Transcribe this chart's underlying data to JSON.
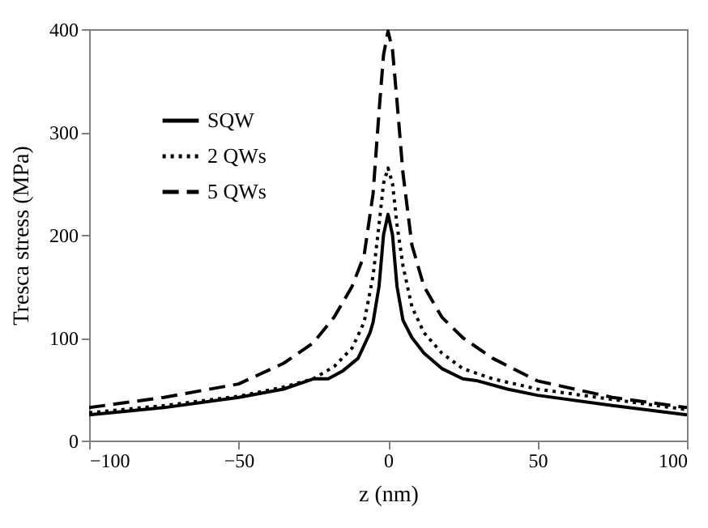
{
  "chart_data": {
    "type": "line",
    "xlabel": "z (nm)",
    "ylabel": "Tresca stress (MPa)",
    "xlim": [
      -100,
      100
    ],
    "xticks": [
      -100,
      -50,
      0,
      50,
      100
    ],
    "ylim": [
      0,
      400
    ],
    "yticks": [
      0,
      100,
      200,
      300,
      400
    ],
    "grid": false,
    "legend": "top left",
    "marker": "none",
    "series": [
      {
        "name": "SQW",
        "color": "#000000",
        "line_style": "solid",
        "x": [
          -100,
          -75,
          -50,
          -35,
          -25,
          -20,
          -15,
          -10,
          -6,
          -5,
          -3,
          -1.5,
          0,
          1.5,
          3,
          5,
          8,
          12,
          18,
          25,
          30,
          40,
          50,
          75,
          100
        ],
        "values": [
          25,
          32,
          42,
          50,
          60,
          60,
          68,
          80,
          105,
          115,
          150,
          200,
          220,
          200,
          150,
          117,
          100,
          85,
          70,
          60,
          58,
          50,
          44,
          34,
          25
        ]
      },
      {
        "name": "2 QWs",
        "color": "#000000",
        "line_style": "dotted",
        "x": [
          -100,
          -75,
          -50,
          -35,
          -25,
          -18,
          -12,
          -8,
          -5,
          -3,
          -1.5,
          0,
          1.5,
          3,
          5,
          8,
          12,
          18,
          25,
          35,
          50,
          75,
          100
        ],
        "values": [
          27,
          34,
          43,
          52,
          60,
          72,
          90,
          115,
          160,
          210,
          250,
          265,
          250,
          210,
          170,
          130,
          105,
          85,
          70,
          60,
          50,
          40,
          30
        ]
      },
      {
        "name": "5 QWs",
        "color": "#000000",
        "line_style": "dashed",
        "x": [
          -100,
          -75,
          -50,
          -35,
          -25,
          -18,
          -12,
          -8,
          -5,
          -3,
          -1.5,
          0,
          1.5,
          3,
          5,
          8,
          12,
          18,
          25,
          35,
          50,
          75,
          100
        ],
        "values": [
          32,
          42,
          55,
          75,
          95,
          120,
          150,
          180,
          240,
          320,
          375,
          398,
          380,
          330,
          260,
          190,
          150,
          120,
          100,
          80,
          58,
          42,
          32
        ]
      }
    ]
  }
}
